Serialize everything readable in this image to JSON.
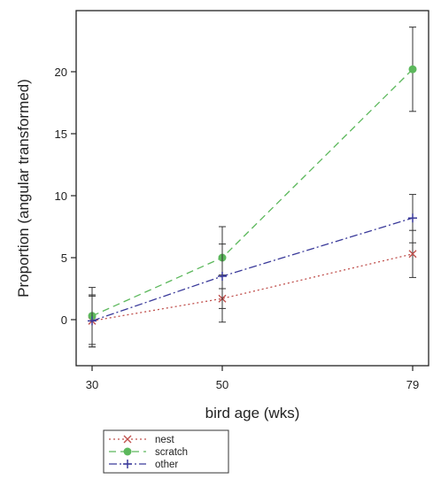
{
  "chart_data": {
    "type": "line",
    "xlabel": "bird age (wks)",
    "ylabel": "Proportion (angular transformed)",
    "x": [
      30,
      50,
      79
    ],
    "x_tick_labels": [
      "30",
      "50",
      "79"
    ],
    "ylim": [
      -3.5,
      24.5
    ],
    "y_ticks": [
      0,
      5,
      10,
      15,
      20
    ],
    "y_tick_labels": [
      "0",
      "5",
      "10",
      "15",
      "20"
    ],
    "grid": false,
    "legend_position": "bottom-left, below plot",
    "series": [
      {
        "name": "nest",
        "color": "#c0504d",
        "line_style": "dotted",
        "marker": "x",
        "values": [
          -0.1,
          1.7,
          5.3
        ],
        "err_low": [
          -2.2,
          -0.2,
          3.4
        ],
        "err_high": [
          2.0,
          3.6,
          7.2
        ]
      },
      {
        "name": "scratch",
        "color": "#5cb85c",
        "line_style": "dashed",
        "marker": "filled-circle",
        "values": [
          0.3,
          5.0,
          20.2
        ],
        "err_low": [
          -2.2,
          2.5,
          16.8
        ],
        "err_high": [
          2.6,
          7.5,
          23.6
        ]
      },
      {
        "name": "other",
        "color": "#3a3a9a",
        "line_style": "dashdot",
        "marker": "plus",
        "values": [
          -0.1,
          3.5,
          8.2
        ],
        "err_low": [
          -2.0,
          0.9,
          6.2
        ],
        "err_high": [
          1.9,
          6.1,
          10.1
        ]
      }
    ]
  }
}
